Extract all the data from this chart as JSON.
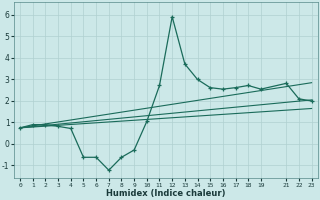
{
  "xlabel": "Humidex (Indice chaleur)",
  "ylabel": "",
  "bg_color": "#cce8e8",
  "grid_color": "#b0d0d0",
  "line_color": "#1a6b5a",
  "xlim": [
    -0.5,
    23.5
  ],
  "ylim": [
    -1.6,
    6.6
  ],
  "xticks": [
    0,
    1,
    2,
    3,
    4,
    5,
    6,
    7,
    8,
    9,
    10,
    11,
    12,
    13,
    14,
    15,
    16,
    17,
    18,
    19,
    21,
    22,
    23
  ],
  "yticks": [
    -1,
    0,
    1,
    2,
    3,
    4,
    5,
    6
  ],
  "main_x": [
    0,
    1,
    2,
    3,
    4,
    5,
    6,
    7,
    8,
    9,
    10,
    11,
    12,
    13,
    14,
    15,
    16,
    17,
    18,
    19,
    21,
    22,
    23
  ],
  "main_y": [
    0.75,
    0.9,
    0.9,
    0.82,
    0.72,
    -0.62,
    -0.62,
    -1.22,
    -0.62,
    -0.28,
    1.05,
    2.72,
    5.92,
    3.72,
    3.0,
    2.62,
    2.55,
    2.62,
    2.72,
    2.55,
    2.82,
    2.1,
    2.0
  ],
  "line2_x": [
    0,
    23
  ],
  "line2_y": [
    0.75,
    2.05
  ],
  "line3_x": [
    0,
    23
  ],
  "line3_y": [
    0.75,
    2.85
  ],
  "line4_x": [
    0,
    23
  ],
  "line4_y": [
    0.75,
    1.65
  ]
}
